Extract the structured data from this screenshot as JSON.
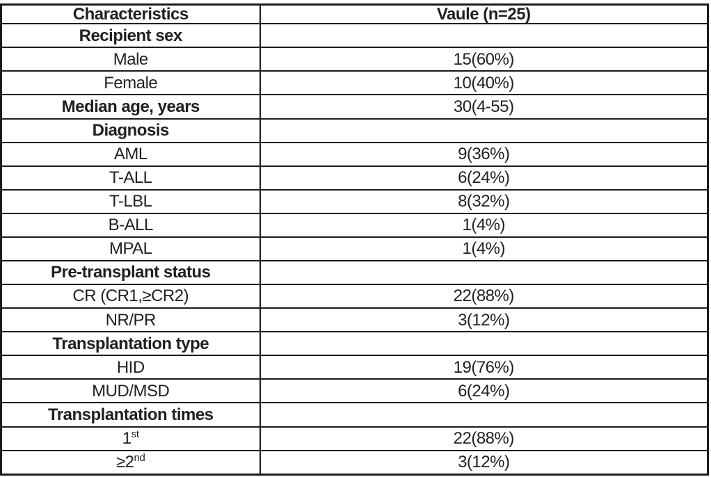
{
  "table": {
    "columns": [
      "Characteristics",
      "Vaule (n=25)"
    ],
    "rows": [
      {
        "label": "Recipient sex",
        "label_sup": "",
        "value": "",
        "bold": true
      },
      {
        "label": "Male",
        "label_sup": "",
        "value": "15(60%)",
        "bold": false
      },
      {
        "label": "Female",
        "label_sup": "",
        "value": "10(40%)",
        "bold": false
      },
      {
        "label": "Median age, years",
        "label_sup": "",
        "value": "30(4-55)",
        "bold": true
      },
      {
        "label": "Diagnosis",
        "label_sup": "",
        "value": "",
        "bold": true
      },
      {
        "label": "AML",
        "label_sup": "",
        "value": "9(36%)",
        "bold": false
      },
      {
        "label": "T-ALL",
        "label_sup": "",
        "value": "6(24%)",
        "bold": false
      },
      {
        "label": "T-LBL",
        "label_sup": "",
        "value": "8(32%)",
        "bold": false
      },
      {
        "label": "B-ALL",
        "label_sup": "",
        "value": "1(4%)",
        "bold": false
      },
      {
        "label": "MPAL",
        "label_sup": "",
        "value": "1(4%)",
        "bold": false
      },
      {
        "label": "Pre-transplant status",
        "label_sup": "",
        "value": "",
        "bold": true
      },
      {
        "label": "CR (CR1,≥CR2)",
        "label_sup": "",
        "value": "22(88%)",
        "bold": false
      },
      {
        "label": "NR/PR",
        "label_sup": "",
        "value": "3(12%)",
        "bold": false
      },
      {
        "label": "Transplantation type",
        "label_sup": "",
        "value": "",
        "bold": true
      },
      {
        "label": "HID",
        "label_sup": "",
        "value": "19(76%)",
        "bold": false
      },
      {
        "label": "MUD/MSD",
        "label_sup": "",
        "value": "6(24%)",
        "bold": false
      },
      {
        "label": "Transplantation times",
        "label_sup": "",
        "value": "",
        "bold": true
      },
      {
        "label": "1",
        "label_sup": "st",
        "value": "22(88%)",
        "bold": false
      },
      {
        "label": "≥2",
        "label_sup": "nd",
        "value": "3(12%)",
        "bold": false
      }
    ]
  },
  "colors": {
    "text": "#231f20",
    "border": "#1b1b1b",
    "background": "#ffffff"
  }
}
